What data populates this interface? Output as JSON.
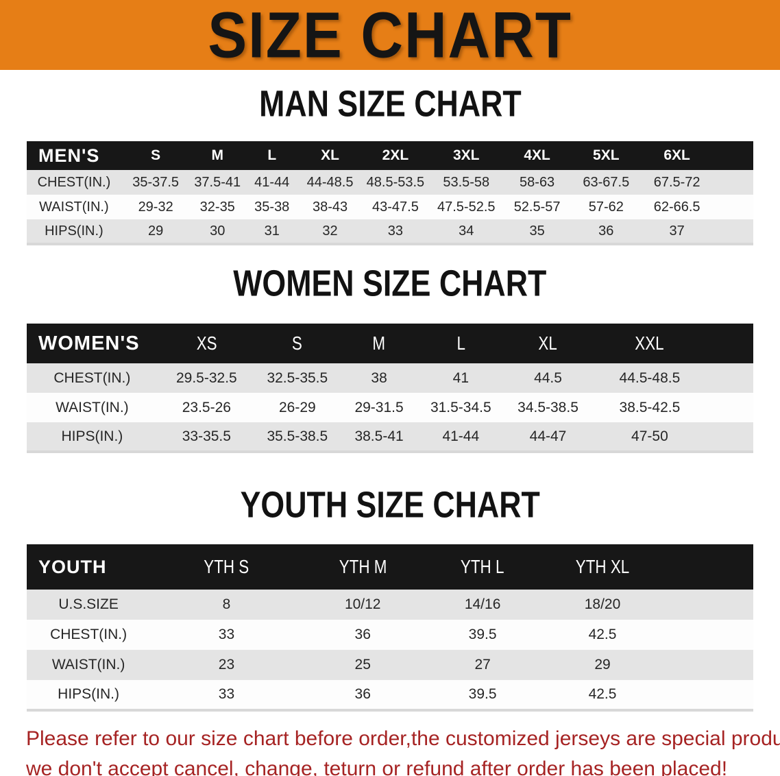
{
  "banner": {
    "title": "SIZE CHART"
  },
  "sections": [
    {
      "heading": "MAN SIZE CHART",
      "table": {
        "corner_label": "MEN'S",
        "columns": [
          "S",
          "M",
          "L",
          "XL",
          "2XL",
          "3XL",
          "4XL",
          "5XL",
          "6XL"
        ],
        "rows": [
          {
            "label": "CHEST(IN.)",
            "values": [
              "35-37.5",
              "37.5-41",
              "41-44",
              "44-48.5",
              "48.5-53.5",
              "53.5-58",
              "58-63",
              "63-67.5",
              "67.5-72"
            ]
          },
          {
            "label": "WAIST(IN.)",
            "values": [
              "29-32",
              "32-35",
              "35-38",
              "38-43",
              "43-47.5",
              "47.5-52.5",
              "52.5-57",
              "57-62",
              "62-66.5"
            ]
          },
          {
            "label": "HIPS(IN.)",
            "values": [
              "29",
              "30",
              "31",
              "32",
              "33",
              "34",
              "35",
              "36",
              "37"
            ]
          }
        ]
      }
    },
    {
      "heading": "WOMEN SIZE CHART",
      "table": {
        "corner_label": "WOMEN'S",
        "columns": [
          "XS",
          "S",
          "M",
          "L",
          "XL",
          "XXL"
        ],
        "rows": [
          {
            "label": "CHEST(IN.)",
            "values": [
              "29.5-32.5",
              "32.5-35.5",
              "38",
              "41",
              "44.5",
              "44.5-48.5"
            ]
          },
          {
            "label": "WAIST(IN.)",
            "values": [
              "23.5-26",
              "26-29",
              "29-31.5",
              "31.5-34.5",
              "34.5-38.5",
              "38.5-42.5"
            ]
          },
          {
            "label": "HIPS(IN.)",
            "values": [
              "33-35.5",
              "35.5-38.5",
              "38.5-41",
              "41-44",
              "44-47",
              "47-50"
            ]
          }
        ]
      }
    },
    {
      "heading": "YOUTH SIZE CHART",
      "table": {
        "corner_label": "YOUTH",
        "columns": [
          "YTH S",
          "YTH M",
          "YTH L",
          "YTH XL"
        ],
        "rows": [
          {
            "label": "U.S.SIZE",
            "values": [
              "8",
              "10/12",
              "14/16",
              "18/20"
            ]
          },
          {
            "label": "CHEST(IN.)",
            "values": [
              "33",
              "36",
              "39.5",
              "42.5"
            ]
          },
          {
            "label": "WAIST(IN.)",
            "values": [
              "23",
              "25",
              "27",
              "29"
            ]
          },
          {
            "label": "HIPS(IN.)",
            "values": [
              "33",
              "36",
              "39.5",
              "42.5"
            ]
          }
        ]
      }
    }
  ],
  "disclaimer": {
    "lines": [
      "Please refer to our size chart before order,the customized jerseys are special products,",
      "we don't accept cancel, change, teturn or refund after order has been placed!"
    ]
  },
  "colors": {
    "banner_bg": "#E67E16",
    "banner_text": "#151515",
    "table_header_bg": "#171717",
    "table_header_text": "#FFFFFF",
    "row_alt_bg": "#E4E4E4",
    "row_bg": "#FDFDFD",
    "body_text": "#262626",
    "disclaimer_text": "#A62323",
    "bottom_strip": "#CFCFCF"
  }
}
